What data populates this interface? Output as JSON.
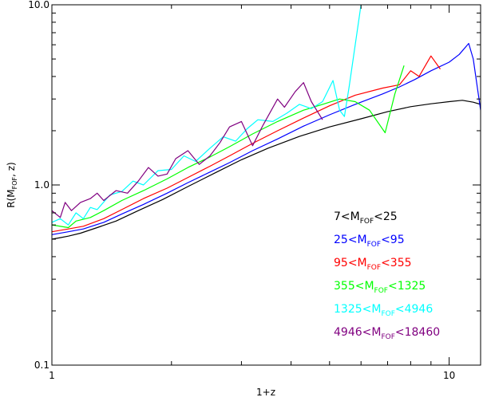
{
  "chart_data": {
    "type": "line",
    "title": "",
    "xlabel": "1+z",
    "ylabel": "R(M_FOF, z)",
    "ylabel_parts": {
      "main": "R(M",
      "sub": "FOF",
      "tail": ", z)"
    },
    "x_scale": "log",
    "y_scale": "log",
    "xlim": [
      1.0,
      12.0
    ],
    "ylim": [
      0.1,
      10.0
    ],
    "x_ticks": [
      {
        "value": 1,
        "label": "1"
      },
      {
        "value": 10,
        "label": "10"
      }
    ],
    "y_ticks": [
      {
        "value": 0.1,
        "label": "0.1"
      },
      {
        "value": 1.0,
        "label": "1.0"
      },
      {
        "value": 10.0,
        "label": "10.0"
      }
    ],
    "grid": false,
    "legend": {
      "placement": "lower-right"
    },
    "series": [
      {
        "label": {
          "pre": "7<M",
          "sub": "FOF",
          "post": "<25"
        },
        "color": "#000000",
        "points": [
          [
            1.0,
            0.5
          ],
          [
            1.05,
            0.51
          ],
          [
            1.1,
            0.52
          ],
          [
            1.18,
            0.54
          ],
          [
            1.3,
            0.58
          ],
          [
            1.45,
            0.63
          ],
          [
            1.65,
            0.72
          ],
          [
            1.9,
            0.83
          ],
          [
            2.2,
            0.98
          ],
          [
            2.6,
            1.18
          ],
          [
            3.0,
            1.38
          ],
          [
            3.5,
            1.6
          ],
          [
            4.2,
            1.86
          ],
          [
            5.0,
            2.1
          ],
          [
            6.0,
            2.33
          ],
          [
            7.0,
            2.55
          ],
          [
            8.0,
            2.72
          ],
          [
            9.0,
            2.82
          ],
          [
            10.0,
            2.9
          ],
          [
            10.8,
            2.95
          ],
          [
            11.5,
            2.88
          ],
          [
            12.0,
            2.8
          ]
        ]
      },
      {
        "label": {
          "pre": "25<M",
          "sub": "FOF",
          "post": "<95"
        },
        "color": "#0000ff",
        "points": [
          [
            1.0,
            0.53
          ],
          [
            1.1,
            0.55
          ],
          [
            1.2,
            0.57
          ],
          [
            1.35,
            0.62
          ],
          [
            1.5,
            0.69
          ],
          [
            1.7,
            0.78
          ],
          [
            1.95,
            0.9
          ],
          [
            2.2,
            1.03
          ],
          [
            2.5,
            1.18
          ],
          [
            2.8,
            1.33
          ],
          [
            3.2,
            1.55
          ],
          [
            3.7,
            1.8
          ],
          [
            4.3,
            2.12
          ],
          [
            5.0,
            2.45
          ],
          [
            5.8,
            2.8
          ],
          [
            6.8,
            3.2
          ],
          [
            7.5,
            3.5
          ],
          [
            8.2,
            3.85
          ],
          [
            9.0,
            4.3
          ],
          [
            10.0,
            4.8
          ],
          [
            10.6,
            5.3
          ],
          [
            11.2,
            6.1
          ],
          [
            11.5,
            5.0
          ],
          [
            12.0,
            2.6
          ]
        ]
      },
      {
        "label": {
          "pre": "95<M",
          "sub": "FOF",
          "post": "<355"
        },
        "color": "#ff0000",
        "points": [
          [
            1.0,
            0.55
          ],
          [
            1.1,
            0.57
          ],
          [
            1.2,
            0.59
          ],
          [
            1.35,
            0.65
          ],
          [
            1.5,
            0.73
          ],
          [
            1.7,
            0.84
          ],
          [
            1.95,
            0.96
          ],
          [
            2.2,
            1.1
          ],
          [
            2.5,
            1.27
          ],
          [
            2.8,
            1.45
          ],
          [
            3.2,
            1.7
          ],
          [
            3.7,
            2.0
          ],
          [
            4.3,
            2.35
          ],
          [
            5.0,
            2.75
          ],
          [
            5.8,
            3.15
          ],
          [
            6.8,
            3.45
          ],
          [
            7.5,
            3.6
          ],
          [
            8.0,
            4.3
          ],
          [
            8.4,
            4.0
          ],
          [
            9.0,
            5.2
          ],
          [
            9.5,
            4.4
          ]
        ]
      },
      {
        "label": {
          "pre": "355<M",
          "sub": "FOF",
          "post": "<1325"
        },
        "color": "#00ff00",
        "points": [
          [
            1.0,
            0.6
          ],
          [
            1.1,
            0.58
          ],
          [
            1.15,
            0.63
          ],
          [
            1.25,
            0.66
          ],
          [
            1.35,
            0.72
          ],
          [
            1.5,
            0.82
          ],
          [
            1.7,
            0.93
          ],
          [
            1.95,
            1.08
          ],
          [
            2.2,
            1.25
          ],
          [
            2.5,
            1.43
          ],
          [
            2.8,
            1.63
          ],
          [
            3.2,
            1.92
          ],
          [
            3.7,
            2.25
          ],
          [
            4.3,
            2.6
          ],
          [
            4.8,
            2.8
          ],
          [
            5.3,
            3.0
          ],
          [
            5.8,
            2.9
          ],
          [
            6.3,
            2.6
          ],
          [
            6.9,
            1.95
          ],
          [
            7.3,
            3.2
          ],
          [
            7.7,
            4.6
          ]
        ]
      },
      {
        "label": {
          "pre": "1325<M",
          "sub": "FOF",
          "post": "<4946"
        },
        "color": "#00ffff",
        "points": [
          [
            1.0,
            0.62
          ],
          [
            1.05,
            0.65
          ],
          [
            1.1,
            0.6
          ],
          [
            1.15,
            0.7
          ],
          [
            1.2,
            0.65
          ],
          [
            1.25,
            0.75
          ],
          [
            1.3,
            0.73
          ],
          [
            1.4,
            0.88
          ],
          [
            1.5,
            0.92
          ],
          [
            1.6,
            1.05
          ],
          [
            1.7,
            1.0
          ],
          [
            1.85,
            1.2
          ],
          [
            2.0,
            1.22
          ],
          [
            2.15,
            1.45
          ],
          [
            2.3,
            1.35
          ],
          [
            2.5,
            1.6
          ],
          [
            2.7,
            1.85
          ],
          [
            2.9,
            1.75
          ],
          [
            3.1,
            2.05
          ],
          [
            3.3,
            2.3
          ],
          [
            3.6,
            2.25
          ],
          [
            3.9,
            2.5
          ],
          [
            4.2,
            2.8
          ],
          [
            4.5,
            2.65
          ],
          [
            4.8,
            2.9
          ],
          [
            5.1,
            3.8
          ],
          [
            5.3,
            2.6
          ],
          [
            5.45,
            2.4
          ],
          [
            5.6,
            3.5
          ],
          [
            6.0,
            10.0
          ]
        ]
      },
      {
        "label": {
          "pre": "4946<M",
          "sub": "FOF",
          "post": "<18460"
        },
        "color": "#800080",
        "points": [
          [
            1.0,
            0.72
          ],
          [
            1.05,
            0.66
          ],
          [
            1.08,
            0.8
          ],
          [
            1.12,
            0.72
          ],
          [
            1.18,
            0.8
          ],
          [
            1.25,
            0.84
          ],
          [
            1.3,
            0.9
          ],
          [
            1.35,
            0.82
          ],
          [
            1.45,
            0.93
          ],
          [
            1.55,
            0.9
          ],
          [
            1.65,
            1.05
          ],
          [
            1.75,
            1.25
          ],
          [
            1.85,
            1.12
          ],
          [
            1.95,
            1.15
          ],
          [
            2.05,
            1.4
          ],
          [
            2.2,
            1.55
          ],
          [
            2.35,
            1.3
          ],
          [
            2.5,
            1.45
          ],
          [
            2.65,
            1.72
          ],
          [
            2.8,
            2.1
          ],
          [
            3.0,
            2.25
          ],
          [
            3.2,
            1.65
          ],
          [
            3.4,
            2.15
          ],
          [
            3.7,
            3.0
          ],
          [
            3.85,
            2.7
          ],
          [
            4.1,
            3.3
          ],
          [
            4.3,
            3.7
          ],
          [
            4.5,
            2.9
          ],
          [
            4.8,
            2.3
          ]
        ]
      }
    ]
  }
}
